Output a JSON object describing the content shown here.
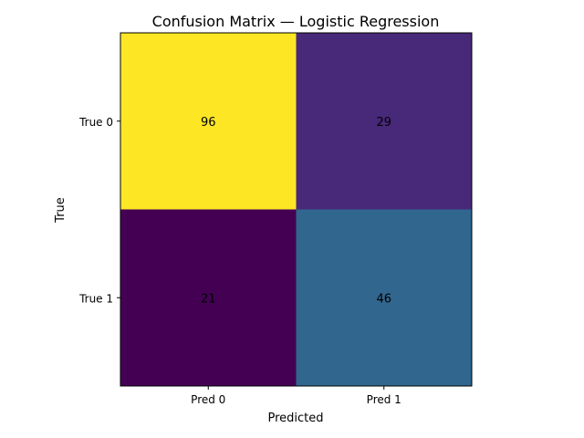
{
  "chart_data": {
    "type": "heatmap",
    "title": "Confusion Matrix — Logistic Regression",
    "xlabel": "Predicted",
    "ylabel": "True",
    "x_categories": [
      "Pred 0",
      "Pred 1"
    ],
    "y_categories": [
      "True 0",
      "True 1"
    ],
    "matrix": [
      [
        96,
        29
      ],
      [
        21,
        46
      ]
    ],
    "value_range": [
      21,
      96
    ],
    "colormap": "viridis",
    "cell_colors": [
      [
        "#fde725",
        "#482878"
      ],
      [
        "#440154",
        "#31668e"
      ]
    ],
    "grid": false,
    "legend": "none"
  }
}
